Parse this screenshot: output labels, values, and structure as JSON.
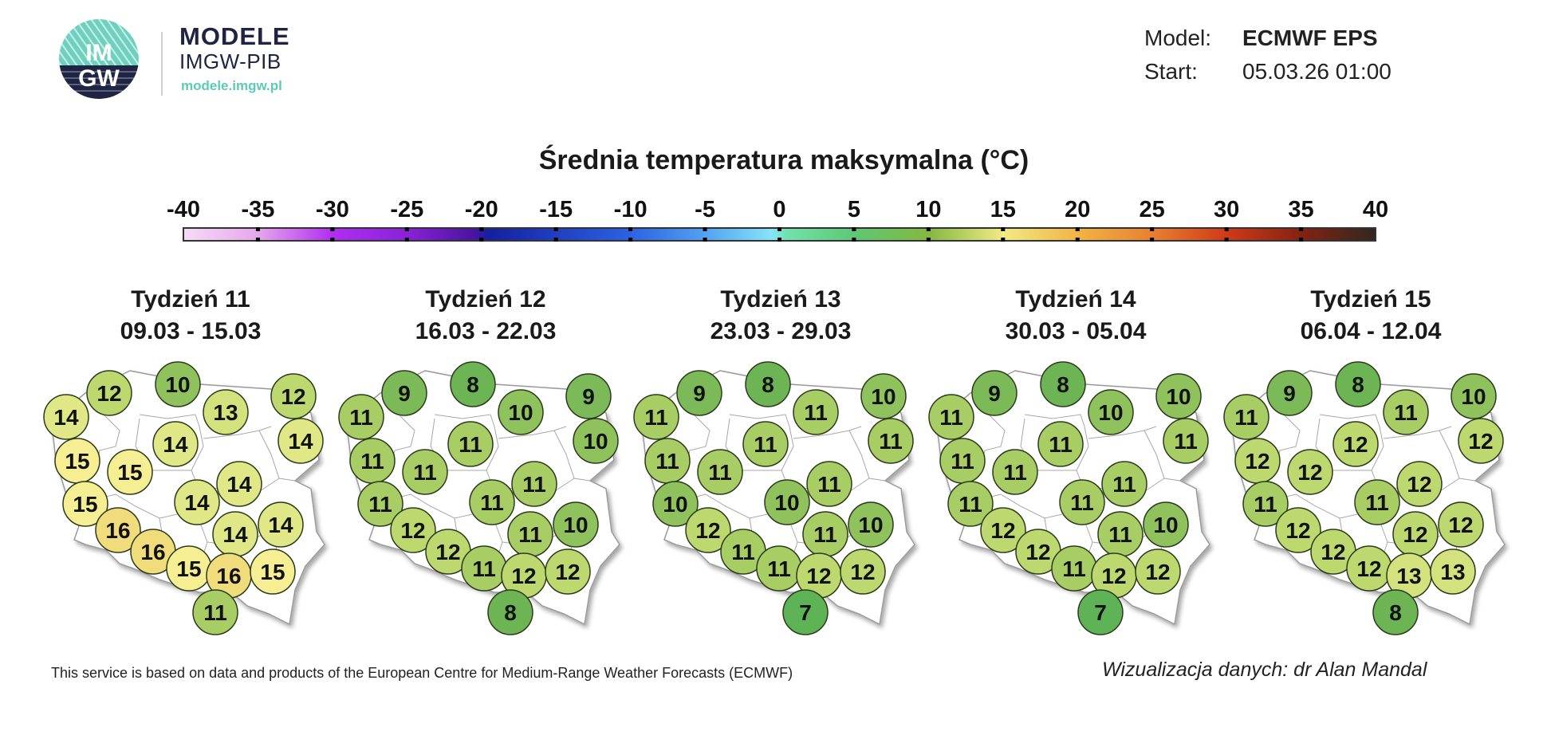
{
  "header": {
    "logo_text": "IMGW",
    "brand_title": "MODELE",
    "brand_subtitle": "IMGW-PIB",
    "brand_url": "modele.imgw.pl",
    "model_label": "Model:",
    "model_value": "ECMWF EPS",
    "start_label": "Start:",
    "start_value": "05.03.26 01:00"
  },
  "map_title": "Średnia temperatura maksymalna (°C)",
  "colorbar": {
    "ticks": [
      "-40",
      "-35",
      "-30",
      "-25",
      "-20",
      "-15",
      "-10",
      "-5",
      "0",
      "5",
      "10",
      "15",
      "20",
      "25",
      "30",
      "35",
      "40"
    ],
    "range": [
      -40,
      40
    ],
    "stops": [
      {
        "v": -40,
        "c": "#f6dcf6"
      },
      {
        "v": -35,
        "c": "#e6a6ec"
      },
      {
        "v": -30,
        "c": "#b02ef2"
      },
      {
        "v": -25,
        "c": "#8a22d8"
      },
      {
        "v": -20.5,
        "c": "#4a14a0"
      },
      {
        "v": -19.5,
        "c": "#1420a0"
      },
      {
        "v": -10,
        "c": "#2c62e4"
      },
      {
        "v": -5,
        "c": "#52a2f0"
      },
      {
        "v": -0.5,
        "c": "#86e4fa"
      },
      {
        "v": 0.5,
        "c": "#72e2aa"
      },
      {
        "v": 5,
        "c": "#5ec874"
      },
      {
        "v": 10,
        "c": "#84b840"
      },
      {
        "v": 15,
        "c": "#f2ea84"
      },
      {
        "v": 20,
        "c": "#f2b444"
      },
      {
        "v": 25,
        "c": "#e88030"
      },
      {
        "v": 30,
        "c": "#d03a18"
      },
      {
        "v": 35,
        "c": "#842212"
      },
      {
        "v": 40,
        "c": "#302820"
      }
    ]
  },
  "value_colors": {
    "7": "#5eb357",
    "8": "#6db455",
    "9": "#7cb958",
    "10": "#8fc15d",
    "11": "#a8cd64",
    "12": "#bcd86e",
    "13": "#d3e27d",
    "14": "#dfe786",
    "15": "#f6ee93",
    "16": "#f1dc7c"
  },
  "weeks": [
    {
      "title": "Tydzień 11",
      "dates": "09.03 - 15.03",
      "values": [
        12,
        10,
        14,
        13,
        12,
        14,
        14,
        15,
        15,
        14,
        14,
        15,
        16,
        14,
        14,
        16,
        15,
        16,
        15,
        11
      ]
    },
    {
      "title": "Tydzień 12",
      "dates": "16.03 - 22.03",
      "values": [
        9,
        8,
        11,
        10,
        9,
        11,
        10,
        11,
        11,
        11,
        11,
        11,
        12,
        11,
        10,
        12,
        11,
        12,
        12,
        8
      ]
    },
    {
      "title": "Tydzień 13",
      "dates": "23.03 - 29.03",
      "values": [
        9,
        8,
        11,
        11,
        10,
        11,
        11,
        11,
        11,
        11,
        10,
        10,
        12,
        11,
        10,
        11,
        11,
        12,
        12,
        7
      ]
    },
    {
      "title": "Tydzień 14",
      "dates": "30.03 - 05.04",
      "values": [
        9,
        8,
        11,
        10,
        10,
        11,
        11,
        11,
        11,
        11,
        11,
        11,
        12,
        11,
        10,
        12,
        11,
        12,
        12,
        7
      ]
    },
    {
      "title": "Tydzień 15",
      "dates": "06.04 - 12.04",
      "values": [
        9,
        8,
        11,
        11,
        10,
        12,
        12,
        12,
        12,
        12,
        11,
        11,
        12,
        12,
        12,
        12,
        12,
        13,
        13,
        8
      ]
    }
  ],
  "footer": {
    "attribution": "This service is based on data and products of the European Centre for Medium-Range Weather Forecasts (ECMWF)",
    "credit": "Wizualizacja danych: dr Alan Mandal"
  }
}
